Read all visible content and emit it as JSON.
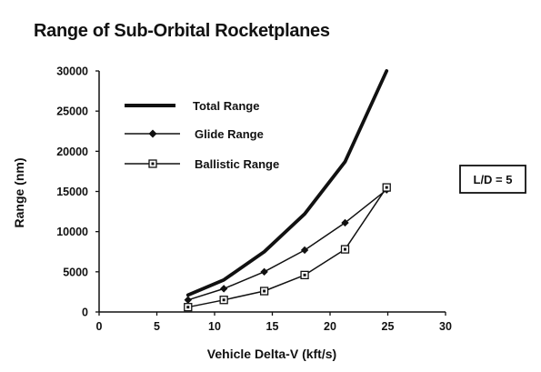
{
  "chart_data": {
    "type": "line",
    "title": "Range of Sub-Orbital Rocketplanes",
    "xlabel": "Vehicle Delta-V (kft/s)",
    "ylabel": "Range (nm)",
    "xlim": [
      0,
      30
    ],
    "ylim": [
      0,
      30000
    ],
    "xticks": [
      "0",
      "5",
      "10",
      "15",
      "20",
      "25",
      "30"
    ],
    "yticks": [
      "0",
      "5000",
      "10000",
      "15000",
      "20000",
      "25000",
      "30000"
    ],
    "grid": false,
    "legend_position": "top-left",
    "annotation": "L/D = 5",
    "series": [
      {
        "name": "Total Range",
        "marker": "none",
        "x": [
          7.7,
          10.8,
          14.3,
          17.8,
          21.3,
          24.9
        ],
        "y": [
          2100,
          4000,
          7500,
          12200,
          18700,
          30000
        ]
      },
      {
        "name": "Glide Range",
        "marker": "diamond",
        "x": [
          7.7,
          10.8,
          14.3,
          17.8,
          21.3,
          24.9
        ],
        "y": [
          1500,
          2900,
          5000,
          7700,
          11100,
          15200
        ]
      },
      {
        "name": "Ballistic Range",
        "marker": "square",
        "x": [
          7.7,
          10.8,
          14.3,
          17.8,
          21.3,
          24.9
        ],
        "y": [
          600,
          1500,
          2600,
          4600,
          7800,
          15500
        ]
      }
    ]
  }
}
